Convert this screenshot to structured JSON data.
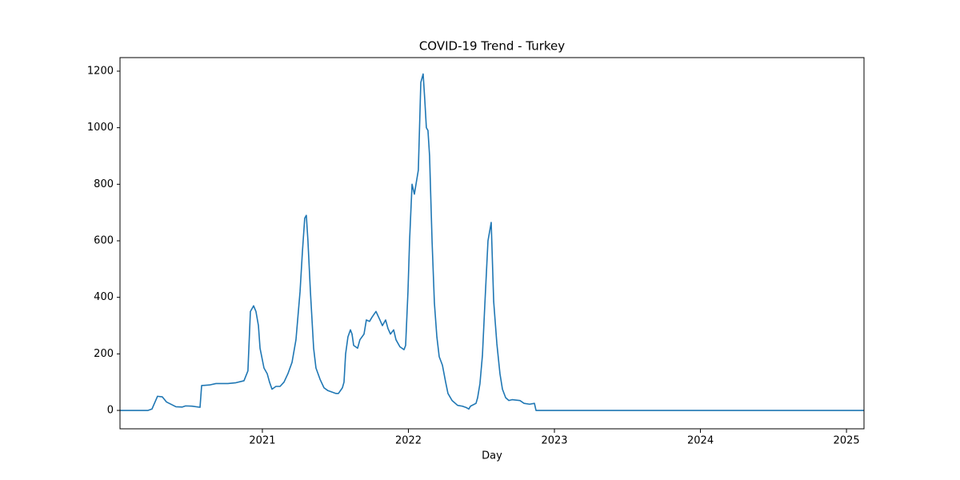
{
  "chart_data": {
    "type": "line",
    "title": "COVID-19 Trend - Turkey",
    "xlabel": "Day",
    "x": [
      2020.025,
      2020.217,
      2020.244,
      2020.282,
      2020.315,
      2020.343,
      2020.381,
      2020.408,
      2020.452,
      2020.474,
      2020.518,
      2020.573,
      2020.584,
      2020.638,
      2020.682,
      2020.764,
      2020.819,
      2020.874,
      2020.901,
      2020.918,
      2020.94,
      2020.956,
      2020.973,
      2020.984,
      2021.011,
      2021.033,
      2021.049,
      2021.066,
      2021.093,
      2021.121,
      2021.148,
      2021.175,
      2021.203,
      2021.23,
      2021.258,
      2021.274,
      2021.29,
      2021.301,
      2021.312,
      2021.329,
      2021.351,
      2021.367,
      2021.395,
      2021.422,
      2021.449,
      2021.504,
      2021.521,
      2021.548,
      2021.559,
      2021.57,
      2021.586,
      2021.603,
      2021.614,
      2021.625,
      2021.652,
      2021.668,
      2021.696,
      2021.712,
      2021.734,
      2021.751,
      2021.778,
      2021.805,
      2021.822,
      2021.844,
      2021.86,
      2021.877,
      2021.899,
      2021.915,
      2021.942,
      2021.97,
      2021.981,
      2021.997,
      2022.008,
      2022.025,
      2022.041,
      2022.052,
      2022.068,
      2022.085,
      2022.101,
      2022.112,
      2022.123,
      2022.134,
      2022.145,
      2022.162,
      2022.178,
      2022.195,
      2022.211,
      2022.233,
      2022.255,
      2022.271,
      2022.299,
      2022.337,
      2022.37,
      2022.397,
      2022.414,
      2022.425,
      2022.463,
      2022.474,
      2022.49,
      2022.507,
      2022.523,
      2022.545,
      2022.567,
      2022.584,
      2022.606,
      2022.627,
      2022.644,
      2022.666,
      2022.688,
      2022.71,
      2022.764,
      2022.792,
      2022.83,
      2022.863,
      2022.874,
      2025.12
    ],
    "series": [
      {
        "name": "Turkey",
        "color": "#1f77b4",
        "values": [
          0,
          0,
          5,
          50,
          48,
          30,
          20,
          13,
          12,
          16,
          15,
          11,
          88,
          90,
          95,
          95,
          98,
          105,
          140,
          350,
          370,
          350,
          300,
          220,
          150,
          130,
          100,
          75,
          85,
          85,
          100,
          130,
          170,
          250,
          420,
          560,
          680,
          690,
          600,
          420,
          220,
          150,
          110,
          80,
          70,
          60,
          60,
          80,
          100,
          200,
          260,
          285,
          270,
          230,
          220,
          250,
          270,
          320,
          315,
          330,
          350,
          320,
          300,
          320,
          290,
          270,
          285,
          250,
          225,
          215,
          230,
          420,
          600,
          800,
          765,
          800,
          850,
          1160,
          1190,
          1100,
          1000,
          990,
          900,
          600,
          380,
          260,
          190,
          160,
          100,
          60,
          35,
          18,
          15,
          10,
          5,
          15,
          25,
          45,
          95,
          195,
          370,
          600,
          665,
          385,
          235,
          130,
          75,
          45,
          35,
          38,
          35,
          25,
          22,
          25,
          0,
          0
        ]
      }
    ],
    "xlim": [
      2020.025,
      2025.12
    ],
    "xticks": [
      2021,
      2022,
      2023,
      2024,
      2025
    ],
    "ylim": [
      -65,
      1248
    ],
    "yticks": [
      0,
      200,
      400,
      600,
      800,
      1000,
      1200
    ]
  }
}
